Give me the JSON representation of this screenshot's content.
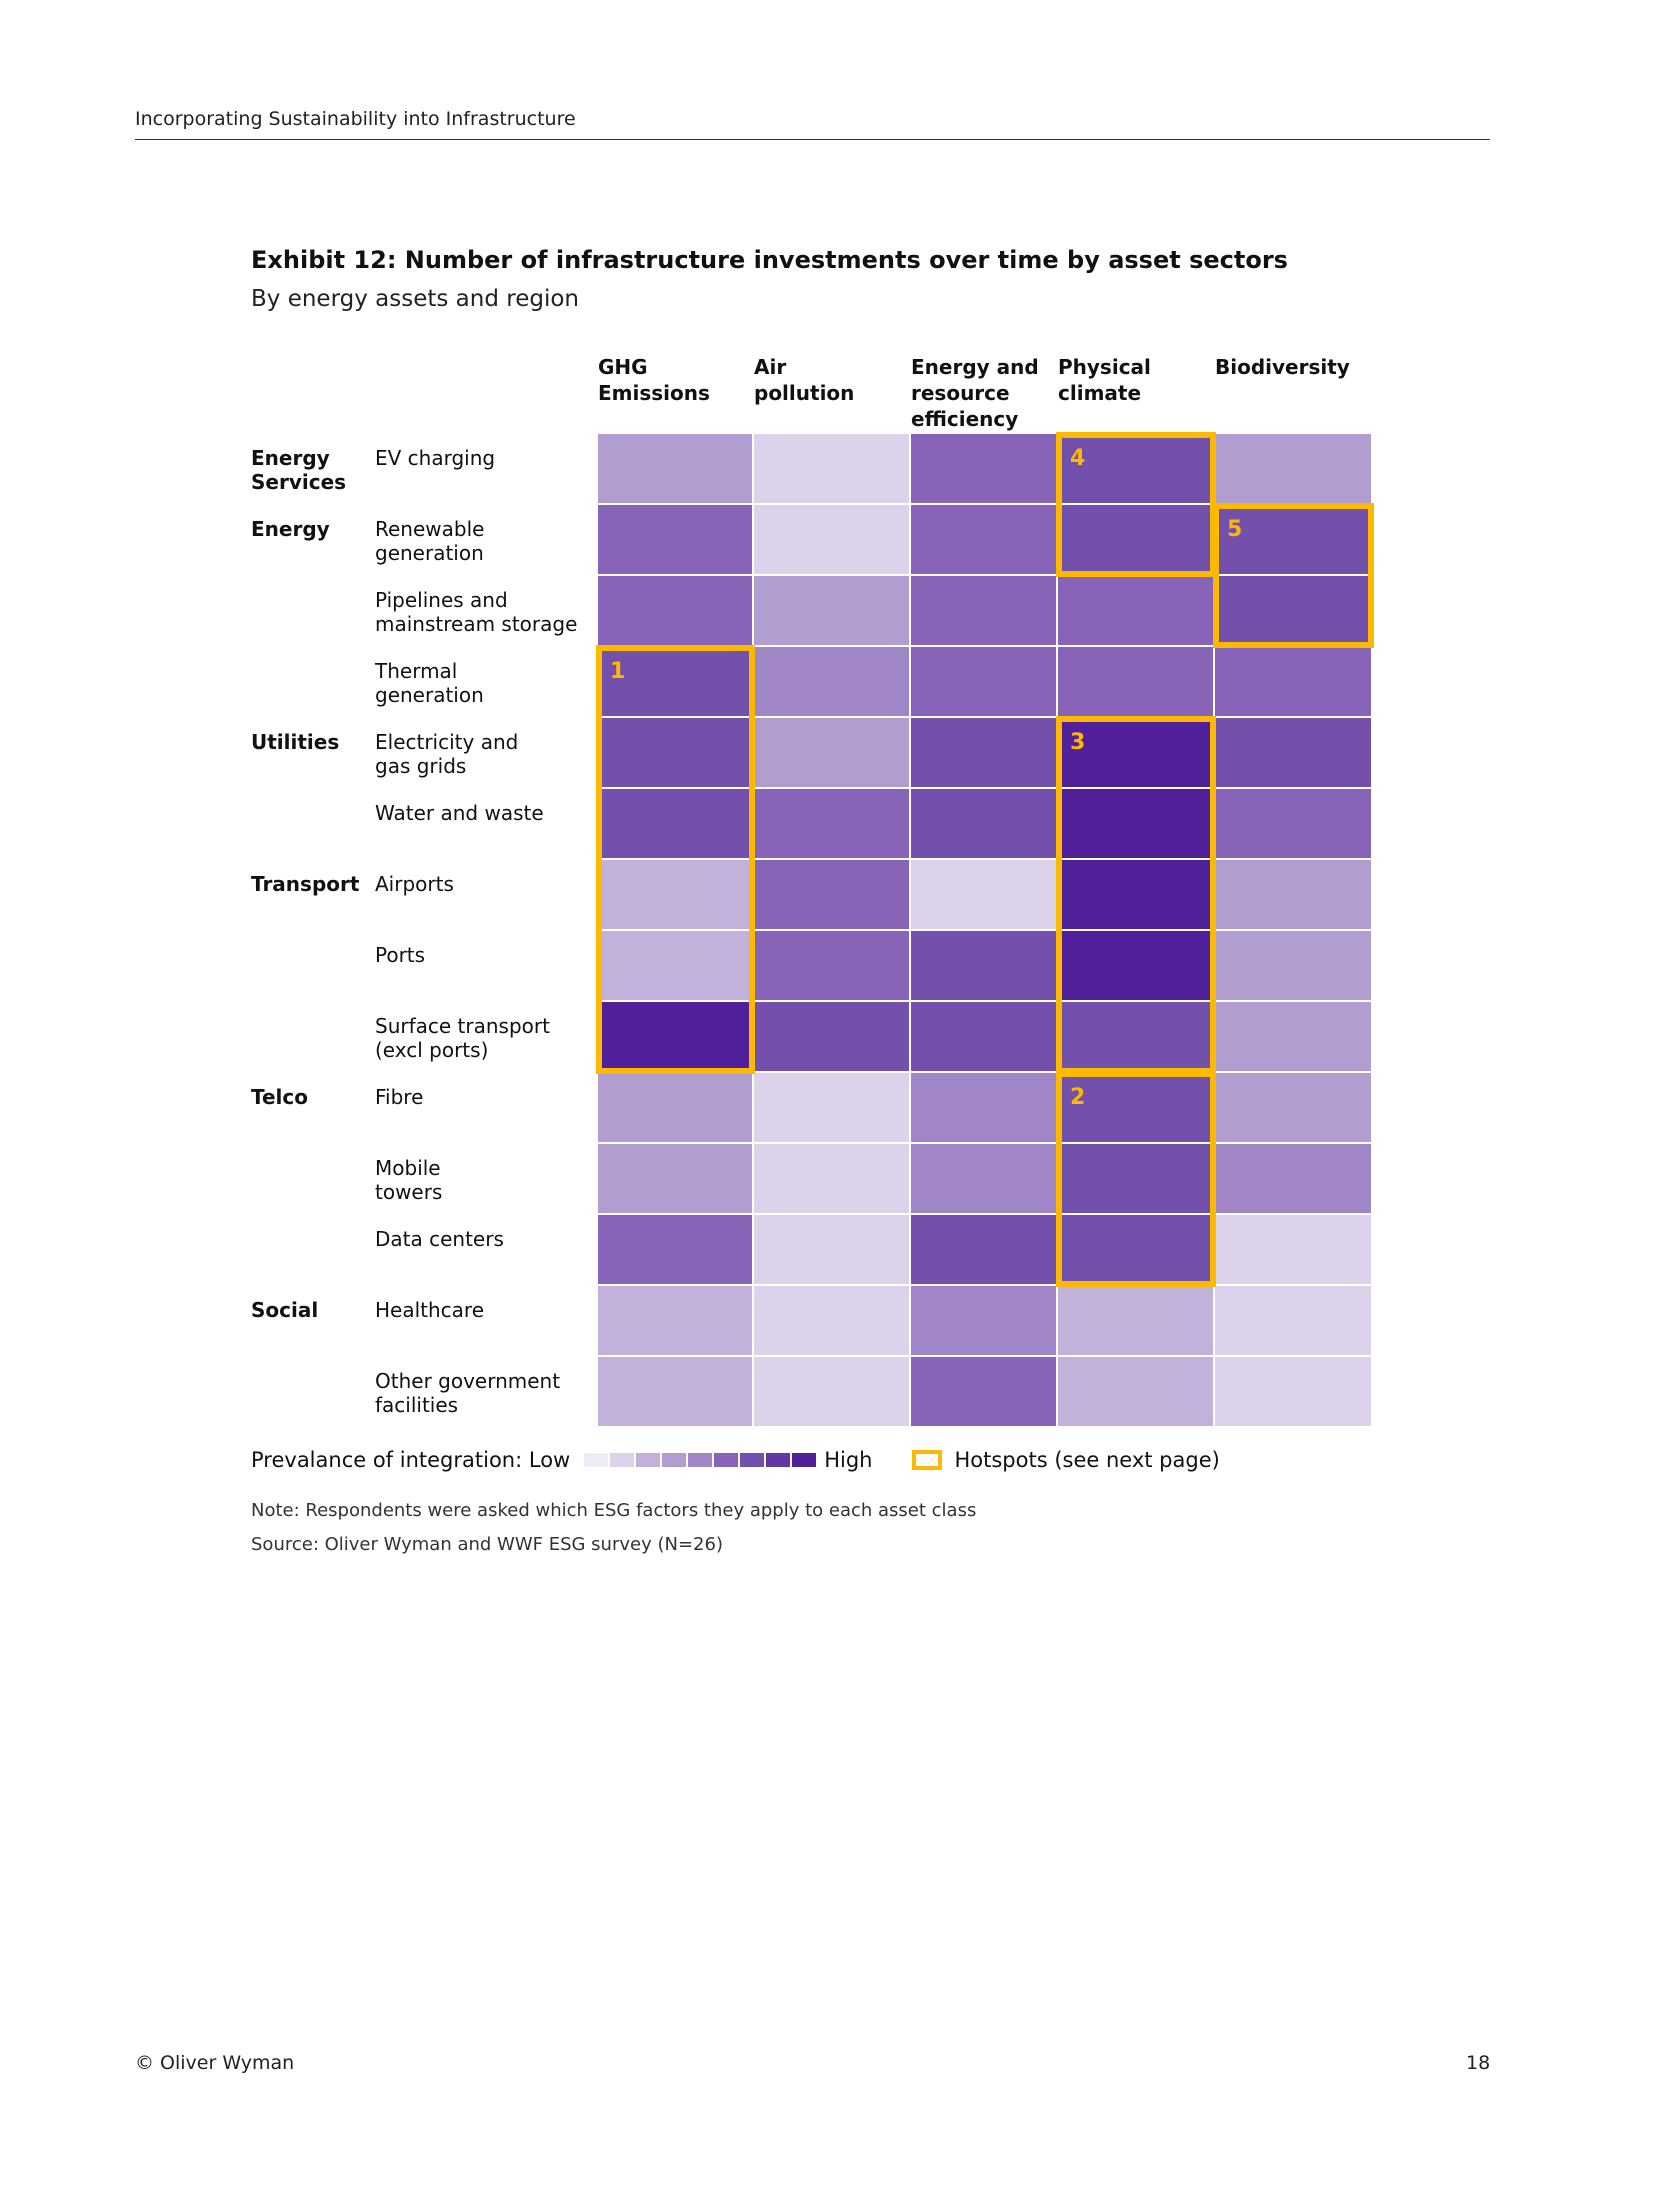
{
  "header": {
    "running_title": "Incorporating Sustainability into Infrastructure"
  },
  "footer": {
    "copyright": "© Oliver Wyman",
    "page_number": "18"
  },
  "chart_data": {
    "type": "heatmap",
    "title": "Exhibit 12: Number of infrastructure investments over time by asset sectors",
    "subtitle": "By energy assets and region",
    "columns": [
      "GHG\nEmissions",
      "Air\npollution",
      "Energy and\nresource\nefficiency",
      "Physical\nclimate",
      "Biodiversity"
    ],
    "groups": [
      {
        "label": "Energy\nServices",
        "row": 0
      },
      {
        "label": "Energy",
        "row": 1
      },
      {
        "label": "Utilities",
        "row": 4
      },
      {
        "label": "Transport",
        "row": 6
      },
      {
        "label": "Telco",
        "row": 9
      },
      {
        "label": "Social",
        "row": 12
      }
    ],
    "rows": [
      "EV charging",
      "Renewable\ngeneration",
      "Pipelines and\nmainstream storage",
      "Thermal\ngeneration",
      "Electricity and\ngas grids",
      "Water and waste",
      "Airports",
      "Ports",
      "Surface transport\n(excl ports)",
      "Fibre",
      "Mobile\ntowers",
      "Data centers",
      "Healthcare",
      "Other government\nfacilities"
    ],
    "scale": "prevalence level 1 (low) to 9 (high)",
    "values": [
      [
        4,
        2,
        6,
        7,
        4
      ],
      [
        6,
        2,
        6,
        7,
        7
      ],
      [
        6,
        4,
        6,
        6,
        7
      ],
      [
        7,
        5,
        6,
        6,
        6
      ],
      [
        7,
        4,
        7,
        9,
        7
      ],
      [
        7,
        6,
        7,
        9,
        6
      ],
      [
        3,
        6,
        2,
        9,
        4
      ],
      [
        3,
        6,
        7,
        9,
        4
      ],
      [
        9,
        7,
        7,
        7,
        4
      ],
      [
        4,
        2,
        5,
        7,
        4
      ],
      [
        4,
        2,
        5,
        7,
        5
      ],
      [
        6,
        2,
        7,
        7,
        2
      ],
      [
        3,
        2,
        5,
        3,
        2
      ],
      [
        3,
        2,
        6,
        3,
        2
      ]
    ],
    "palette": [
      "#f0ecf6",
      "#dcd3ea",
      "#c2b2db",
      "#b29dd1",
      "#a086c6",
      "#8764b8",
      "#7350ab",
      "#6238a4",
      "#521f9b"
    ],
    "hotspots": [
      {
        "label": "1",
        "column": 0,
        "rows": [
          3,
          8
        ]
      },
      {
        "label": "2",
        "column": 3,
        "rows": [
          9,
          11
        ]
      },
      {
        "label": "3",
        "column": 3,
        "rows": [
          4,
          8
        ]
      },
      {
        "label": "4",
        "column": 3,
        "rows": [
          0,
          1
        ]
      },
      {
        "label": "5",
        "column": 4,
        "rows": [
          1,
          2
        ]
      }
    ],
    "hotspot_color": "#fbb900",
    "legend": {
      "prefix": "Prevalance of integration: Low",
      "high": "High",
      "hotspots": "Hotspots (see next page)"
    },
    "note": "Note: Respondents were asked which ESG factors they apply to each asset class",
    "source": "Source: Oliver Wyman and WWF ESG survey (N=26)"
  }
}
